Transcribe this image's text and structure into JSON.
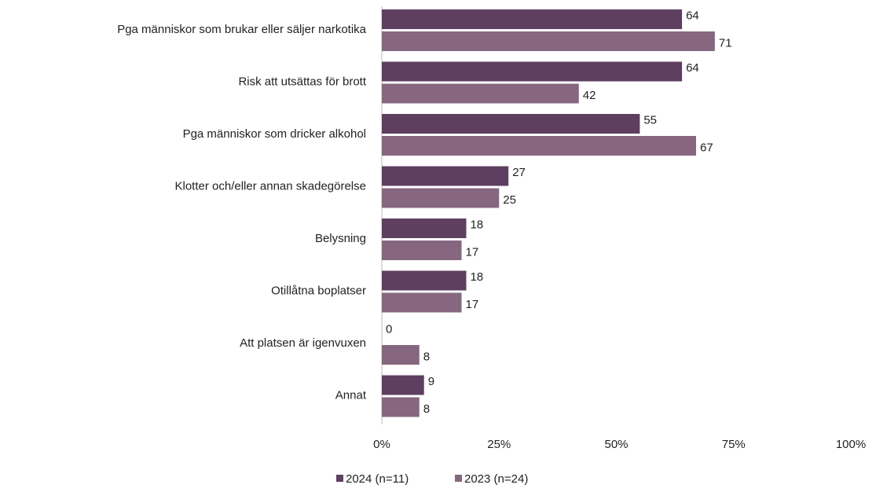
{
  "chart_data": {
    "type": "bar",
    "orientation": "horizontal",
    "categories": [
      "Pga människor som brukar eller säljer narkotika",
      "Risk att utsättas för brott",
      "Pga människor som dricker alkohol",
      "Klotter och/eller annan skadegörelse",
      "Belysning",
      "Otillåtna boplatser",
      "Att platsen är igenvuxen",
      "Annat"
    ],
    "series": [
      {
        "name": "2024 (n=11)",
        "color": "#5e3f60",
        "values": [
          64,
          64,
          55,
          27,
          18,
          18,
          0,
          9
        ]
      },
      {
        "name": "2023 (n=24)",
        "color": "#86677f",
        "values": [
          71,
          42,
          67,
          25,
          17,
          17,
          8,
          8
        ]
      }
    ],
    "xlim": [
      0,
      100
    ],
    "xticks": [
      {
        "value": 0,
        "label": "0%"
      },
      {
        "value": 25,
        "label": "25%"
      },
      {
        "value": 50,
        "label": "50%"
      },
      {
        "value": 75,
        "label": "75%"
      },
      {
        "value": 100,
        "label": "100%"
      }
    ],
    "legend": "bottom"
  }
}
